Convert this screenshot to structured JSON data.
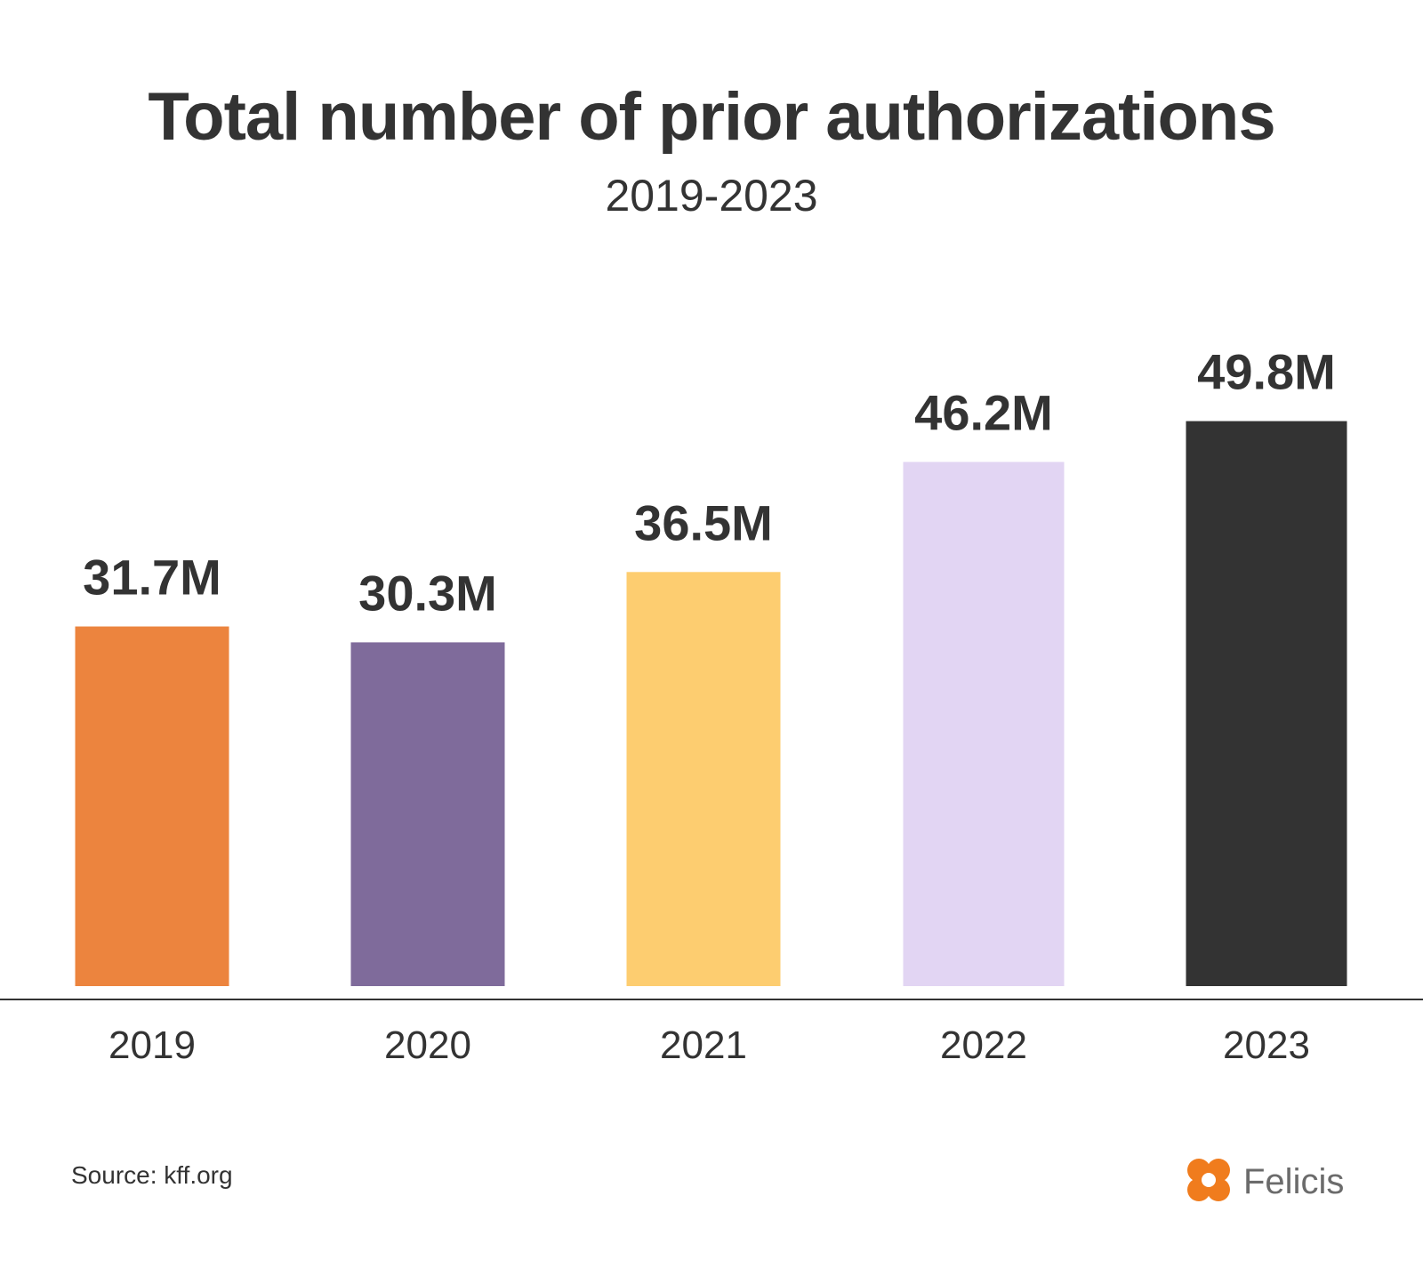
{
  "chart_data": {
    "type": "bar",
    "title": "Total number of prior authorizations",
    "subtitle": "2019-2023",
    "categories": [
      "2019",
      "2020",
      "2021",
      "2022",
      "2023"
    ],
    "values": [
      31.7,
      30.3,
      36.5,
      46.2,
      49.8
    ],
    "value_labels": [
      "31.7M",
      "30.3M",
      "36.5M",
      "46.2M",
      "49.8M"
    ],
    "bar_colors": [
      "#ec843e",
      "#7f6b9b",
      "#fdcd70",
      "#e2d5f3",
      "#333333"
    ],
    "xlabel": "",
    "ylabel": "",
    "ylim": [
      0,
      54
    ],
    "grid": false,
    "legend": "none"
  },
  "footer": {
    "source": "Source: kff.org",
    "brand": "Felicis",
    "brand_icon": "clover-icon",
    "brand_icon_color": "#f07c1d"
  },
  "colors": {
    "text": "#333333",
    "baseline": "#333333",
    "background": "#ffffff"
  }
}
